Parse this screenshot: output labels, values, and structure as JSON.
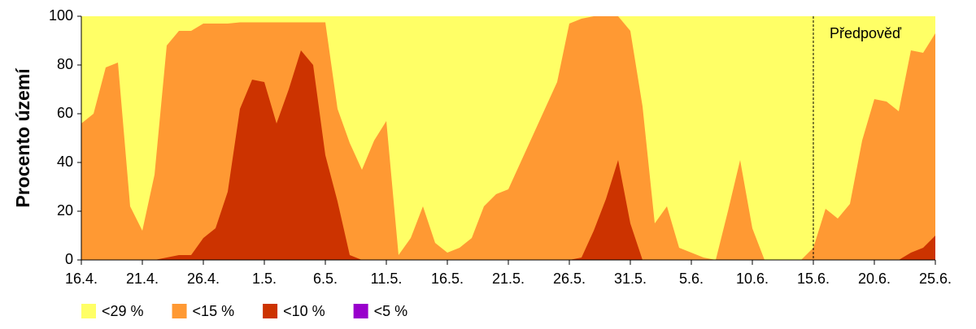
{
  "chart_data": {
    "type": "area",
    "ylabel": "Procento území",
    "categories": [
      "16.4.",
      null,
      null,
      null,
      null,
      "21.4.",
      null,
      null,
      null,
      null,
      "26.4.",
      null,
      null,
      null,
      null,
      "1.5.",
      null,
      null,
      null,
      null,
      "6.5.",
      null,
      null,
      null,
      null,
      "11.5.",
      null,
      null,
      null,
      null,
      "16.5.",
      null,
      null,
      null,
      null,
      "21.5.",
      null,
      null,
      null,
      null,
      "26.5.",
      null,
      null,
      null,
      null,
      "31.5.",
      null,
      null,
      null,
      null,
      "5.6.",
      null,
      null,
      null,
      null,
      "10.6.",
      null,
      null,
      null,
      null,
      "15.6.",
      null,
      null,
      null,
      null,
      "20.6.",
      null,
      null,
      null,
      null,
      "25.6."
    ],
    "series": [
      {
        "name": "<29 %",
        "color": "#ffff66",
        "values": [
          100,
          100,
          100,
          100,
          100,
          100,
          100,
          100,
          100,
          100,
          100,
          100,
          100,
          100,
          100,
          100,
          100,
          100,
          100,
          100,
          100,
          100,
          100,
          100,
          100,
          100,
          100,
          100,
          100,
          100,
          100,
          100,
          100,
          100,
          100,
          100,
          100,
          100,
          100,
          100,
          100,
          100,
          100,
          100,
          100,
          100,
          100,
          100,
          100,
          100,
          100,
          100,
          100,
          100,
          100,
          100,
          100,
          100,
          100,
          100,
          100,
          100,
          100,
          100,
          100,
          100,
          100,
          100,
          100,
          100,
          100
        ]
      },
      {
        "name": "<15 %",
        "color": "#ff9933",
        "values": [
          56,
          60,
          79,
          81,
          22,
          12,
          35,
          88,
          94,
          94,
          97,
          97,
          97,
          97.5,
          97.5,
          97.5,
          97.5,
          97.5,
          97.5,
          97.5,
          97.5,
          62,
          48,
          37,
          49,
          57,
          2,
          9,
          22,
          7,
          3,
          5,
          9,
          22,
          27,
          29,
          40,
          51,
          62,
          73,
          97,
          99,
          100,
          100,
          100,
          94,
          63,
          15,
          22,
          5,
          3,
          1,
          0,
          20,
          41,
          13,
          0,
          0,
          0,
          0,
          5,
          21,
          17,
          23,
          49,
          66,
          65,
          61,
          86,
          85,
          93
        ]
      },
      {
        "name": "<10 %",
        "color": "#cc3300",
        "values": [
          0,
          0,
          0,
          0,
          0,
          0,
          0,
          1,
          2,
          2,
          9,
          13,
          28,
          62,
          74,
          73,
          56,
          70,
          86,
          80,
          43,
          24,
          2,
          0,
          0,
          0,
          0,
          0,
          0,
          0,
          0,
          0,
          0,
          0,
          0,
          0,
          0,
          0,
          0,
          0,
          0,
          1,
          12,
          25,
          41,
          15,
          0,
          0,
          0,
          0,
          0,
          0,
          0,
          0,
          0,
          0,
          0,
          0,
          0,
          0,
          0,
          0,
          0,
          0,
          0,
          0,
          0,
          0,
          3,
          5,
          10
        ]
      },
      {
        "name": "<5 %",
        "color": "#9900cc",
        "values": [
          0,
          0,
          0,
          0,
          0,
          0,
          0,
          0,
          0,
          0,
          0,
          0,
          0,
          0,
          0,
          0,
          0,
          0,
          0,
          0,
          0,
          0,
          0,
          0,
          0,
          0,
          0,
          0,
          0,
          0,
          0,
          0,
          0,
          0,
          0,
          0,
          0,
          0,
          0,
          0,
          0,
          0,
          0,
          0,
          0,
          0,
          0,
          0,
          0,
          0,
          0,
          0,
          0,
          0,
          0,
          0,
          0,
          0,
          0,
          0,
          0,
          0,
          0,
          0,
          0,
          0,
          0,
          0,
          0,
          0,
          0
        ]
      }
    ],
    "ylim": [
      0,
      100
    ],
    "yticks": [
      0,
      20,
      40,
      60,
      80,
      100
    ],
    "forecast_start": "15.6.",
    "annotation": "Předpověď",
    "legend": "bottom"
  }
}
